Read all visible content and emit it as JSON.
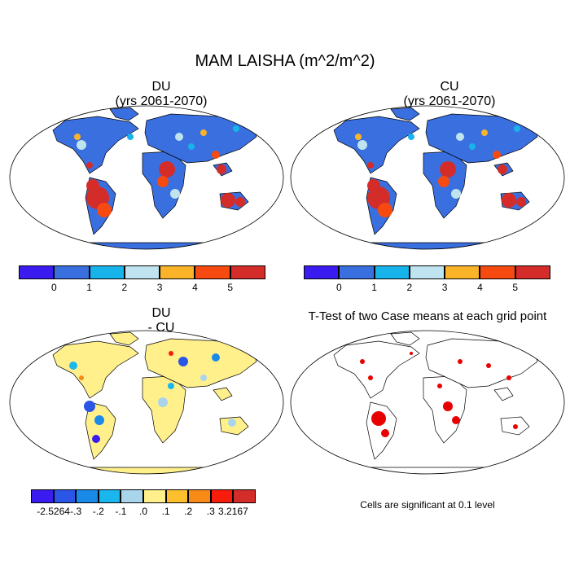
{
  "title": "MAM LAISHA (m^2/m^2)",
  "panels": {
    "top_left": {
      "title_line1": "DU",
      "title_line2": "(yrs 2061-2070)"
    },
    "top_right": {
      "title_line1": "CU",
      "title_line2": "(yrs 2061-2070)"
    },
    "bottom_left": {
      "title_line1": "DU",
      "title_line2": "- CU"
    },
    "bottom_right": {
      "title": "T-Test of two Case means at each grid point"
    }
  },
  "legend_top": {
    "colors": [
      "#3b1cf0",
      "#3a6fe0",
      "#16b4ea",
      "#bfe4f0",
      "#fbb42a",
      "#f74a10",
      "#d42c28"
    ],
    "labels": [
      "0",
      "1",
      "2",
      "3",
      "4",
      "5"
    ]
  },
  "legend_diff": {
    "colors": [
      "#3b1cf0",
      "#2b55e6",
      "#1a8ae8",
      "#1ab6ee",
      "#a8d4ec",
      "#fff08c",
      "#fcc02c",
      "#f88a18",
      "#f81c0c",
      "#d42c28"
    ],
    "labels": [
      "-2.5264",
      "-.3",
      "-.2",
      "-.1",
      ".0",
      ".1",
      ".2",
      ".3",
      "3.2167"
    ]
  },
  "note": "Cells are significant at 0.1 level",
  "map_colors": {
    "ocean": "#ffffff",
    "base_land": "#3a6fe0",
    "diff_land": "#fff08c",
    "sig": "#e80000"
  }
}
